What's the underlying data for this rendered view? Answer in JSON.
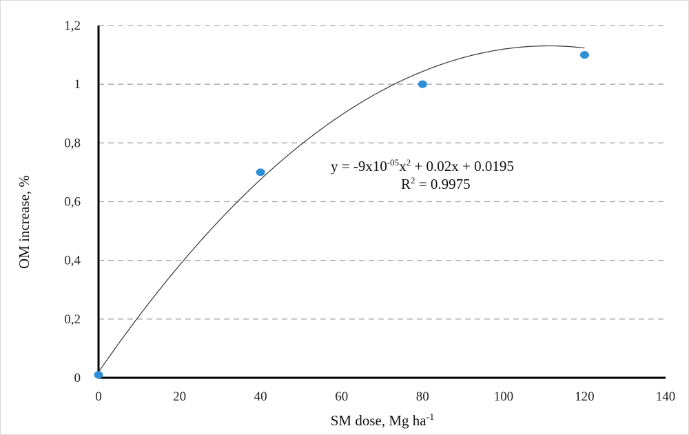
{
  "chart_data": {
    "type": "scatter",
    "xlabel": "SM dose, Mg ha",
    "xlabel_superscript": "-1",
    "ylabel": "OM increase, %",
    "xlim": [
      0,
      140
    ],
    "ylim": [
      0,
      1.2
    ],
    "x_ticks": [
      0,
      20,
      40,
      60,
      80,
      100,
      120,
      140
    ],
    "x_tick_labels": [
      "0",
      "20",
      "40",
      "60",
      "80",
      "100",
      "120",
      "140"
    ],
    "y_ticks": [
      0,
      0.2,
      0.4,
      0.6,
      0.8,
      1,
      1.2
    ],
    "y_tick_labels": [
      "0",
      "0,2",
      "0,4",
      "0,6",
      "0,8",
      "1",
      "1,2"
    ],
    "grid": "horizontal dashed",
    "series": [
      {
        "x": [
          0,
          40,
          80,
          120
        ],
        "y": [
          0.01,
          0.7,
          1.0,
          1.1
        ],
        "color": "#2e8fd6"
      }
    ],
    "trendline": {
      "kind": "polynomial",
      "coefficients": {
        "a": -9e-05,
        "b": 0.02,
        "c": 0.0195
      },
      "x_range": [
        0,
        120
      ],
      "color": "#333333"
    },
    "annotations": {
      "equation_prefix": "y = -9x10",
      "equation_exp": "-05",
      "equation_mid": "x",
      "equation_sq": "2",
      "equation_suffix": "  + 0.02x + 0.0195",
      "r2_prefix": "R",
      "r2_sq": "2",
      "r2_suffix": " = 0.9975"
    }
  }
}
